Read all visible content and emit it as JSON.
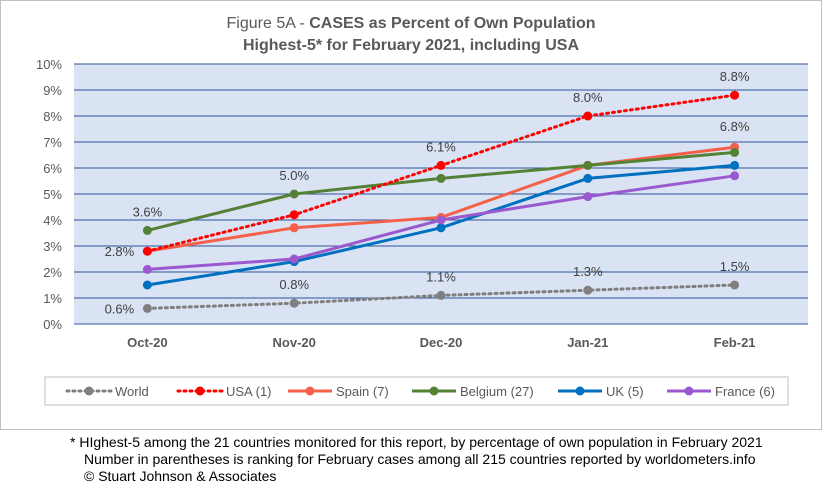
{
  "chart_data": {
    "type": "line",
    "title_prefix": "Figure 5A - ",
    "title_bold": "CASES as Percent of Own Population",
    "subtitle": "Highest-5* for February 2021, including USA",
    "categories": [
      "Oct-20",
      "Nov-20",
      "Dec-20",
      "Jan-21",
      "Feb-21"
    ],
    "ylim": [
      0,
      10
    ],
    "yticks": [
      "0%",
      "1%",
      "2%",
      "3%",
      "4%",
      "5%",
      "6%",
      "7%",
      "8%",
      "9%",
      "10%"
    ],
    "grid": true,
    "legend_position": "bottom",
    "series": [
      {
        "name": "World",
        "color": "#7f7f7f",
        "dashed": true,
        "values": [
          0.6,
          0.8,
          1.1,
          1.3,
          1.5
        ],
        "labels": [
          "0.6%",
          "0.8%",
          "1.1%",
          "1.3%",
          "1.5%"
        ]
      },
      {
        "name": "USA (1)",
        "color": "#ff0000",
        "dashed": true,
        "values": [
          2.8,
          4.2,
          6.1,
          8.0,
          8.8
        ],
        "labels": [
          "2.8%",
          null,
          "6.1%",
          "8.0%",
          "8.8%"
        ]
      },
      {
        "name": "Spain (7)",
        "color": "#f4604a",
        "dashed": false,
        "values": [
          2.8,
          3.7,
          4.1,
          6.1,
          6.8
        ],
        "labels": [
          null,
          null,
          null,
          null,
          "6.8%"
        ]
      },
      {
        "name": "Belgium (27)",
        "color": "#548235",
        "dashed": false,
        "values": [
          3.6,
          5.0,
          5.6,
          6.1,
          6.6
        ],
        "labels": [
          "3.6%",
          "5.0%",
          null,
          null,
          null
        ]
      },
      {
        "name": "UK (5)",
        "color": "#0070c0",
        "dashed": false,
        "values": [
          1.5,
          2.4,
          3.7,
          5.6,
          6.1
        ],
        "labels": [
          null,
          null,
          null,
          null,
          null
        ]
      },
      {
        "name": "France (6)",
        "color": "#9b59d0",
        "dashed": false,
        "values": [
          2.1,
          2.5,
          4.0,
          4.9,
          5.7
        ],
        "labels": [
          null,
          null,
          null,
          null,
          null
        ]
      }
    ]
  },
  "notes": {
    "line1": "* HIghest-5 among the 21 countries monitored for this report, by percentage of own population in February 2021",
    "line2": "Number in parentheses is ranking for February cases among all 215 countries reported by worldometers.info",
    "line3": "© Stuart Johnson & Associates"
  }
}
